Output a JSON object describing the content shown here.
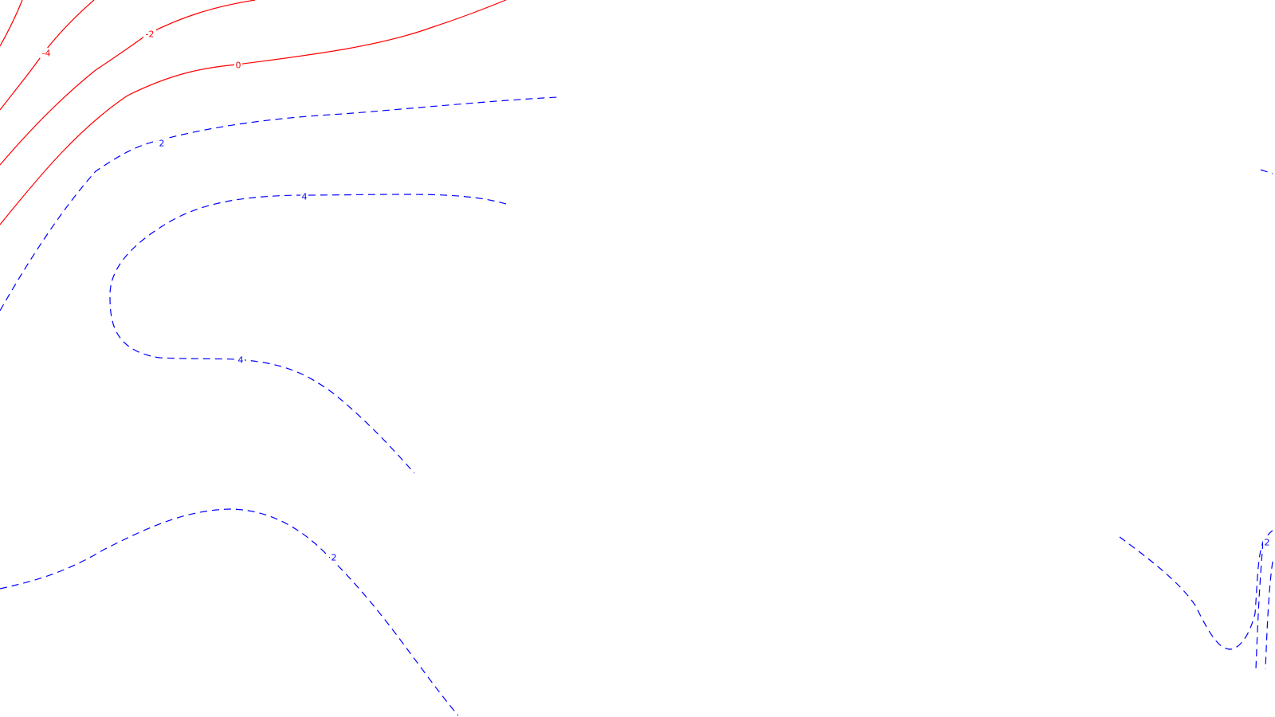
{
  "map": {
    "colors": {
      "negative_and_zero": "#ff0000",
      "positive": "#0000ff",
      "background": "#ffffff"
    },
    "line_styles": {
      "negative_and_zero": "solid",
      "positive": "dashed"
    },
    "contour_labels": {
      "neg4": "-4",
      "neg2": "-2",
      "zero": "0",
      "pos2_upper": "2",
      "pos4_upper": "4",
      "pos4_lower": "4",
      "pos2_lower": "2",
      "pos2_right": "2"
    }
  }
}
